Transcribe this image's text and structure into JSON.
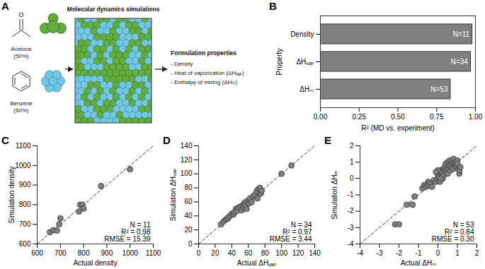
{
  "diagram": {
    "panel": "A",
    "components": [
      {
        "label": "Acetone",
        "fraction": "(50%)",
        "atom": "O"
      },
      {
        "label": "Benzene",
        "fraction": "(50%)"
      }
    ],
    "process": "Molecular dynamics simulations",
    "output": {
      "title": "Formulation properties",
      "items": [
        "- Density",
        "- Heat of vaporization (ΔHᵥₐₚ)",
        "- Enthalpy of mixing (ΔHₘ)"
      ]
    }
  },
  "chart_data": [
    {
      "panel": "B",
      "type": "bar",
      "orientation": "horizontal",
      "categories": [
        "Density",
        "ΔHᵥₐₚ",
        "ΔHₘ"
      ],
      "values": [
        0.98,
        0.97,
        0.84
      ],
      "bar_labels": [
        "N=11",
        "N=34",
        "N=53"
      ],
      "xlim": [
        0,
        1
      ],
      "xticks": [
        {
          "value": 0,
          "label": "0.00"
        },
        {
          "value": 0.25,
          "label": "0.25"
        },
        {
          "value": 0.5,
          "label": "0.50"
        },
        {
          "value": 0.75,
          "label": "0.75"
        },
        {
          "value": 1,
          "label": "1.00"
        }
      ],
      "xlabel": "R² (MD vs. experiment)",
      "ylabel": "Property",
      "color": "#808080"
    },
    {
      "panel": "C",
      "type": "scatter",
      "x": [
        655,
        670,
        685,
        695,
        700,
        780,
        785,
        795,
        800,
        875,
        1000
      ],
      "y": [
        660,
        670,
        668,
        700,
        730,
        765,
        800,
        800,
        780,
        895,
        980
      ],
      "xlim": [
        600,
        1100
      ],
      "ylim": [
        600,
        1100
      ],
      "xticks": [
        600,
        700,
        800,
        900,
        1000,
        1100
      ],
      "yticks": [
        600,
        700,
        800,
        900,
        1000,
        1100
      ],
      "xlabel": "Actual density",
      "ylabel": "Simulation density",
      "annotations": [
        "N = 11",
        "R² = 0.98",
        "RMSE = 15.39"
      ],
      "color": "#808080",
      "marker": "circle"
    },
    {
      "panel": "D",
      "type": "scatter",
      "x": [
        27,
        30,
        33,
        35,
        36,
        38,
        40,
        42,
        43,
        45,
        46,
        48,
        50,
        52,
        53,
        54,
        55,
        56,
        57,
        58,
        60,
        61,
        62,
        64,
        66,
        68,
        70,
        71,
        72,
        74,
        75,
        76,
        100,
        112
      ],
      "y": [
        28,
        32,
        35,
        36,
        38,
        40,
        43,
        42,
        45,
        50,
        47,
        52,
        53,
        48,
        55,
        52,
        58,
        55,
        60,
        50,
        62,
        58,
        65,
        60,
        68,
        70,
        75,
        65,
        78,
        80,
        72,
        76,
        100,
        112
      ],
      "xlim": [
        0,
        140
      ],
      "ylim": [
        0,
        140
      ],
      "xticks": [
        0,
        20,
        40,
        60,
        80,
        100,
        120,
        140
      ],
      "yticks": [
        0,
        20,
        40,
        60,
        80,
        100,
        120,
        140
      ],
      "xlabel": "Actual ΔHᵥₐₚ",
      "ylabel": "Simulation ΔHᵥₐₚ",
      "annotations": [
        "N = 34",
        "R² = 0.97",
        "RMSE = 3.44"
      ],
      "color": "#808080",
      "marker": "circle"
    },
    {
      "panel": "E",
      "type": "scatter",
      "x": [
        -2.2,
        -2.0,
        -1.6,
        -1.3,
        -1.2,
        -0.8,
        -0.7,
        -0.6,
        -0.5,
        -0.5,
        -0.4,
        -0.3,
        -0.2,
        -0.1,
        0,
        0,
        0.05,
        0.1,
        0.1,
        0.15,
        0.2,
        0.2,
        0.25,
        0.3,
        0.3,
        0.35,
        0.4,
        0.4,
        0.45,
        0.5,
        0.5,
        0.55,
        0.6,
        0.6,
        0.65,
        0.7,
        0.7,
        0.75,
        0.8,
        0.8,
        0.85,
        0.9,
        0.9,
        0.95,
        1.0,
        1.0,
        1.05,
        1.1,
        1.1,
        1.15,
        0.0,
        -0.1,
        0.15
      ],
      "y": [
        -2.8,
        -2.8,
        -1.6,
        -1.6,
        -1.1,
        -0.6,
        -0.4,
        -0.5,
        -0.2,
        -0.4,
        -0.3,
        -0.5,
        -0.1,
        -0.2,
        -0.1,
        0.2,
        0.1,
        -0.2,
        0.3,
        0.5,
        0.2,
        0.4,
        0,
        0.6,
        0.2,
        0.7,
        0.4,
        0.9,
        0.5,
        1.0,
        0.3,
        0.6,
        0.8,
        1.1,
        0.5,
        0.7,
        1.0,
        0.9,
        1.2,
        0.6,
        0.9,
        0.8,
        1.0,
        0.7,
        1.1,
        0.9,
        0.6,
        0.3,
        0.5,
        0.7,
        0.5,
        0.4,
        0.0
      ],
      "xlim": [
        -4,
        2
      ],
      "ylim": [
        -4,
        2
      ],
      "xticks": [
        -4,
        -3,
        -2,
        -1,
        0,
        1,
        2
      ],
      "yticks": [
        -4,
        -3,
        -2,
        -1,
        0,
        1,
        2
      ],
      "xlabel": "Actual ΔHₘ",
      "ylabel": "Simulation ΔHₘ",
      "annotations": [
        "N = 53",
        "R² = 0.84",
        "RMSE = 0.30"
      ],
      "color": "#808080",
      "marker": "circle"
    }
  ]
}
